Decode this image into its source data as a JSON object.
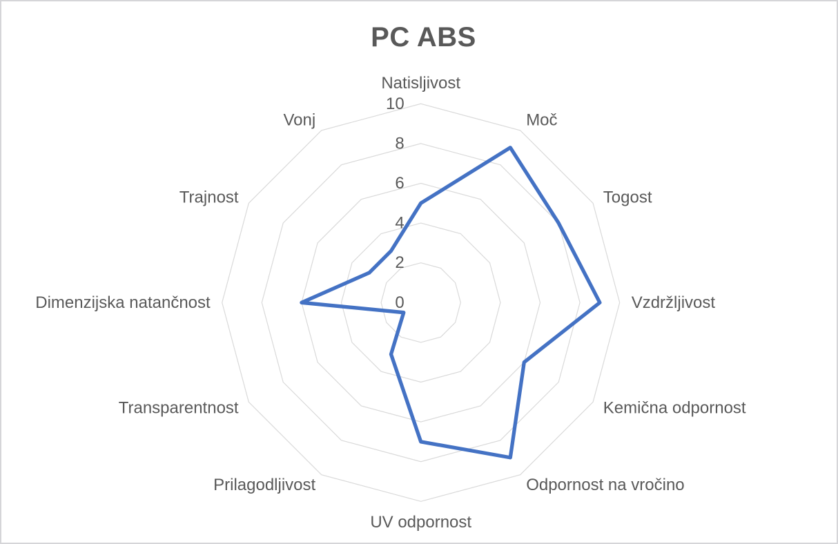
{
  "frame": {
    "background": "#ffffff",
    "border_color": "#d5d5d8"
  },
  "chart_data": {
    "type": "radar",
    "title": "PC ABS",
    "categories": [
      "Natisljivost",
      "Moč",
      "Togost",
      "Vzdržljivost",
      "Kemična odpornost",
      "Odpornost na vročino",
      "UV odpornost",
      "Prilagodljivost",
      "Transparentnost",
      "Dimenzijska natančnost",
      "Trajnost",
      "Vonj"
    ],
    "series": [
      {
        "name": "PC ABS",
        "color": "#4472C4",
        "values": [
          5,
          9,
          8,
          9,
          6,
          9,
          7,
          3,
          1,
          6,
          3,
          3
        ]
      }
    ],
    "axis": {
      "min": 0,
      "max": 10,
      "tick_interval": 2,
      "tick_values": [
        0,
        2,
        4,
        6,
        8,
        10
      ],
      "tick_labels": [
        "0",
        "2",
        "4",
        "6",
        "8",
        "10"
      ]
    },
    "grid": {
      "ring_values": [
        2,
        4,
        6,
        8,
        10
      ],
      "shape": "polygon",
      "spokes": false,
      "color": "#D9D9D9"
    },
    "legend": {
      "visible": false
    },
    "styles": {
      "title_color": "#595959",
      "label_color": "#595959",
      "tick_color": "#595959"
    }
  }
}
